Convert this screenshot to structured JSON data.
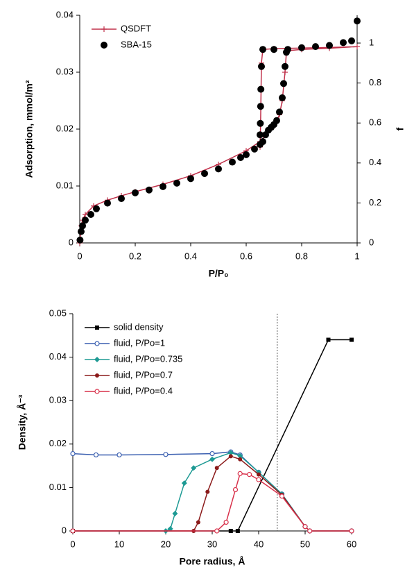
{
  "chart_data": [
    {
      "type": "line",
      "xlabel": "P/P₀",
      "ylabel": "Adsorption, mmol/m²",
      "y2label": "f",
      "xlim": [
        0,
        1
      ],
      "xticks": [
        0,
        0.2,
        0.4,
        0.6,
        0.8,
        1
      ],
      "ylim": [
        0,
        0.04
      ],
      "yticks": [
        0,
        0.01,
        0.02,
        0.03,
        0.04
      ],
      "y2lim": [
        0,
        1.139
      ],
      "y2ticks": [
        0,
        0.2,
        0.4,
        0.6,
        0.8,
        1
      ],
      "legend": "upper left",
      "series": [
        {
          "name": "QSDFT",
          "color": "#c0304a",
          "marker": "plus",
          "axis": "y2",
          "x": [
            0,
            0.005,
            0.01,
            0.02,
            0.05,
            0.1,
            0.15,
            0.2,
            0.3,
            0.4,
            0.5,
            0.6,
            0.65,
            0.7,
            0.72,
            0.73,
            0.74,
            0.745,
            0.75,
            0.8,
            0.9,
            1,
            0.9,
            0.8,
            0.7,
            0.66,
            0.655,
            0.652,
            0.65
          ],
          "values": [
            0,
            0.085,
            0.114,
            0.142,
            0.185,
            0.214,
            0.236,
            0.256,
            0.293,
            0.336,
            0.393,
            0.461,
            0.507,
            0.584,
            0.641,
            0.712,
            0.854,
            0.954,
            0.962,
            0.968,
            0.974,
            0.982,
            0.978,
            0.975,
            0.972,
            0.968,
            0.9,
            0.6,
            0.48
          ]
        },
        {
          "name": "SBA-15",
          "color": "#000000",
          "marker": "dot",
          "line": false,
          "x": [
            0.001,
            0.005,
            0.01,
            0.02,
            0.04,
            0.06,
            0.1,
            0.15,
            0.2,
            0.25,
            0.3,
            0.35,
            0.4,
            0.45,
            0.5,
            0.55,
            0.58,
            0.6,
            0.63,
            0.65,
            0.66,
            0.67,
            0.68,
            0.69,
            0.7,
            0.71,
            0.72,
            0.73,
            0.735,
            0.74,
            0.745,
            0.75,
            0.8,
            0.85,
            0.9,
            0.95,
            0.98,
            1,
            0.7,
            0.66,
            0.655,
            0.653,
            0.652,
            0.651,
            0.65
          ],
          "values": [
            0.0005,
            0.002,
            0.003,
            0.004,
            0.005,
            0.006,
            0.007,
            0.0078,
            0.0088,
            0.0093,
            0.0099,
            0.0105,
            0.0113,
            0.0122,
            0.013,
            0.0142,
            0.015,
            0.0155,
            0.0165,
            0.0173,
            0.0178,
            0.019,
            0.0198,
            0.0203,
            0.0208,
            0.0215,
            0.023,
            0.0255,
            0.028,
            0.031,
            0.0335,
            0.034,
            0.0343,
            0.0345,
            0.0347,
            0.0352,
            0.0355,
            0.039,
            0.034,
            0.034,
            0.031,
            0.027,
            0.024,
            0.021,
            0.019
          ]
        }
      ]
    },
    {
      "type": "line",
      "xlabel": "Pore radius, Å",
      "ylabel": "Density, Å⁻³",
      "xlim": [
        0,
        60
      ],
      "xticks": [
        0,
        10,
        20,
        30,
        40,
        50,
        60
      ],
      "ylim": [
        0,
        0.05
      ],
      "yticks": [
        0,
        0.01,
        0.02,
        0.03,
        0.04,
        0.05
      ],
      "vlines": [
        44
      ],
      "legend": "upper left",
      "series": [
        {
          "name": "solid density",
          "color": "#000000",
          "marker": "square",
          "x": [
            0,
            34,
            35.5,
            55,
            60
          ],
          "values": [
            0,
            0,
            0,
            0.044,
            0.044
          ]
        },
        {
          "name": "fluid, P/Po=1",
          "color": "#3a5fb0",
          "marker": "ring",
          "x": [
            0,
            5,
            10,
            20,
            30,
            34,
            36,
            40,
            45,
            50,
            51,
            60
          ],
          "values": [
            0.0178,
            0.0175,
            0.0175,
            0.0176,
            0.0178,
            0.0182,
            0.0175,
            0.0135,
            0.0085,
            0.001,
            0,
            0
          ]
        },
        {
          "name": "fluid, P/Po=0.735",
          "color": "#1e9a94",
          "marker": "diamond",
          "x": [
            0,
            20,
            21,
            22,
            24,
            26,
            30,
            34,
            36,
            40,
            45,
            50,
            51,
            60
          ],
          "values": [
            0,
            0,
            0.0005,
            0.004,
            0.011,
            0.0145,
            0.0165,
            0.018,
            0.0173,
            0.0135,
            0.0085,
            0.001,
            0,
            0
          ]
        },
        {
          "name": "fluid, P/Po=0.7",
          "color": "#8b1a1a",
          "marker": "dot",
          "x": [
            0,
            26,
            27,
            29,
            31,
            34,
            36,
            40,
            45,
            50,
            51,
            60
          ],
          "values": [
            0,
            0,
            0.002,
            0.009,
            0.0145,
            0.0172,
            0.0165,
            0.013,
            0.0083,
            0.001,
            0,
            0
          ]
        },
        {
          "name": "fluid, P/Po=0.4",
          "color": "#d8304a",
          "marker": "ring",
          "x": [
            0,
            31,
            33,
            35,
            36,
            38,
            40,
            45,
            50,
            51,
            60
          ],
          "values": [
            0,
            0,
            0.002,
            0.0095,
            0.0132,
            0.013,
            0.0118,
            0.008,
            0.001,
            0,
            0
          ]
        }
      ]
    }
  ]
}
